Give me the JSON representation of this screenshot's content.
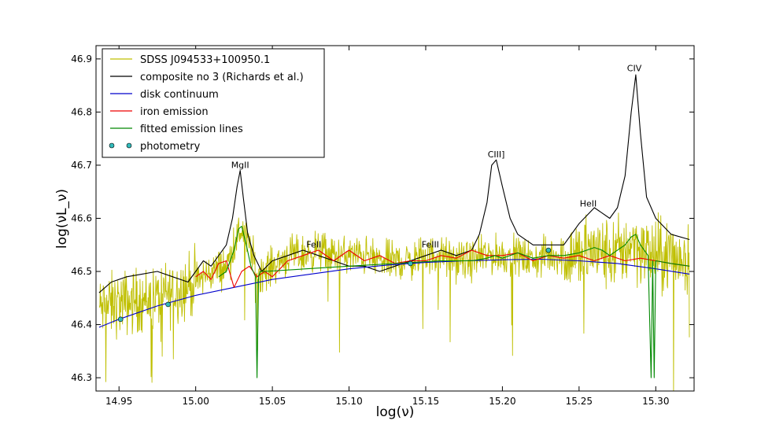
{
  "chart_data": {
    "type": "line",
    "xlabel": "log(ν)",
    "ylabel": "log(νL_ν)",
    "xlim": [
      14.935,
      15.325
    ],
    "ylim": [
      46.275,
      46.925
    ],
    "xticks": [
      "14.95",
      "15.00",
      "15.05",
      "15.10",
      "15.15",
      "15.20",
      "15.25",
      "15.30"
    ],
    "yticks": [
      "46.3",
      "46.4",
      "46.5",
      "46.6",
      "46.7",
      "46.8",
      "46.9"
    ],
    "legend_position": "top-left",
    "grid": false,
    "series": [
      {
        "name": "SDSS J094533+100950.1",
        "kind": "noisy-line",
        "color": "#bfbf00",
        "x": [
          14.937,
          14.95,
          14.975,
          15.0,
          15.01,
          15.02,
          15.025,
          15.03,
          15.035,
          15.04,
          15.045,
          15.05,
          15.06,
          15.07,
          15.08,
          15.09,
          15.1,
          15.11,
          15.12,
          15.13,
          15.14,
          15.15,
          15.16,
          15.17,
          15.18,
          15.19,
          15.2,
          15.21,
          15.22,
          15.23,
          15.24,
          15.25,
          15.26,
          15.27,
          15.28,
          15.285,
          15.29,
          15.3,
          15.31,
          15.322
        ],
        "y": [
          46.43,
          46.44,
          46.45,
          46.48,
          46.5,
          46.51,
          46.55,
          46.58,
          46.55,
          46.5,
          46.5,
          46.51,
          46.53,
          46.53,
          46.54,
          46.53,
          46.53,
          46.53,
          46.52,
          46.52,
          46.52,
          46.53,
          46.53,
          46.52,
          46.52,
          46.53,
          46.53,
          46.53,
          46.52,
          46.53,
          46.53,
          46.53,
          46.54,
          46.53,
          46.54,
          46.56,
          46.54,
          46.53,
          46.53,
          46.52
        ]
      },
      {
        "name": "composite no 3 (Richards et al.)",
        "kind": "line",
        "color": "#000000",
        "x": [
          14.937,
          14.945,
          14.955,
          14.965,
          14.975,
          14.985,
          14.995,
          15.0,
          15.005,
          15.01,
          15.015,
          15.02,
          15.024,
          15.027,
          15.029,
          15.031,
          15.034,
          15.038,
          15.043,
          15.05,
          15.06,
          15.07,
          15.08,
          15.09,
          15.1,
          15.11,
          15.12,
          15.13,
          15.14,
          15.15,
          15.16,
          15.17,
          15.18,
          15.185,
          15.19,
          15.193,
          15.196,
          15.2,
          15.205,
          15.21,
          15.22,
          15.23,
          15.24,
          15.25,
          15.26,
          15.27,
          15.275,
          15.28,
          15.284,
          15.287,
          15.29,
          15.294,
          15.3,
          15.31,
          15.322
        ],
        "y": [
          46.46,
          46.48,
          46.49,
          46.495,
          46.5,
          46.49,
          46.48,
          46.5,
          46.52,
          46.51,
          46.53,
          46.55,
          46.6,
          46.66,
          46.69,
          46.64,
          46.57,
          46.53,
          46.5,
          46.52,
          46.53,
          46.54,
          46.53,
          46.52,
          46.51,
          46.51,
          46.5,
          46.51,
          46.52,
          46.53,
          46.54,
          46.53,
          46.54,
          46.57,
          46.63,
          46.7,
          46.71,
          46.66,
          46.6,
          46.57,
          46.55,
          46.55,
          46.55,
          46.59,
          46.62,
          46.6,
          46.62,
          46.68,
          46.8,
          46.87,
          46.76,
          46.64,
          46.6,
          46.57,
          46.56
        ]
      },
      {
        "name": "disk continuum",
        "kind": "line",
        "color": "#0000cc",
        "x": [
          14.937,
          14.95,
          14.975,
          15.0,
          15.025,
          15.05,
          15.075,
          15.1,
          15.125,
          15.15,
          15.175,
          15.2,
          15.225,
          15.25,
          15.275,
          15.3,
          15.322
        ],
        "y": [
          46.395,
          46.41,
          46.435,
          46.455,
          46.47,
          46.485,
          46.495,
          46.505,
          46.512,
          46.517,
          46.52,
          46.522,
          46.523,
          46.52,
          46.515,
          46.505,
          46.495
        ]
      },
      {
        "name": "iron emission",
        "kind": "line",
        "color": "#ee0000",
        "x": [
          15.0,
          15.005,
          15.01,
          15.015,
          15.02,
          15.025,
          15.03,
          15.035,
          15.04,
          15.045,
          15.05,
          15.06,
          15.07,
          15.08,
          15.09,
          15.1,
          15.11,
          15.12,
          15.13,
          15.14,
          15.15,
          15.16,
          15.17,
          15.18,
          15.19,
          15.2,
          15.21,
          15.22,
          15.23,
          15.24,
          15.25,
          15.26,
          15.27,
          15.28,
          15.29,
          15.3,
          15.31,
          15.322
        ],
        "y": [
          46.49,
          46.5,
          46.485,
          46.515,
          46.52,
          46.47,
          46.5,
          46.51,
          46.49,
          46.5,
          46.49,
          46.52,
          46.53,
          46.54,
          46.52,
          46.54,
          46.52,
          46.53,
          46.515,
          46.52,
          46.52,
          46.53,
          46.525,
          46.54,
          46.53,
          46.53,
          46.535,
          46.52,
          46.53,
          46.525,
          46.53,
          46.52,
          46.53,
          46.52,
          46.525,
          46.52,
          46.515,
          46.51
        ]
      },
      {
        "name": "fitted emission lines",
        "kind": "line",
        "color": "#008800",
        "x": [
          15.015,
          15.02,
          15.025,
          15.028,
          15.03,
          15.033,
          15.036,
          15.039,
          15.04,
          15.041,
          15.042,
          15.045,
          15.1,
          15.16,
          15.18,
          15.19,
          15.195,
          15.2,
          15.21,
          15.22,
          15.23,
          15.24,
          15.25,
          15.255,
          15.26,
          15.265,
          15.27,
          15.28,
          15.284,
          15.287,
          15.29,
          15.295,
          15.297,
          15.298,
          15.299,
          15.3,
          15.31,
          15.322
        ],
        "y": [
          46.49,
          46.5,
          46.54,
          46.58,
          46.585,
          46.55,
          46.51,
          46.49,
          46.3,
          46.49,
          46.5,
          46.5,
          46.51,
          46.52,
          46.52,
          46.525,
          46.53,
          46.525,
          46.535,
          46.525,
          46.53,
          46.53,
          46.535,
          46.54,
          46.545,
          46.54,
          46.53,
          46.55,
          46.565,
          46.57,
          46.55,
          46.53,
          46.3,
          46.52,
          46.3,
          46.52,
          46.515,
          46.51
        ]
      }
    ],
    "photometry": {
      "name": "photometry",
      "color": "#33bbbb",
      "x": [
        14.951,
        14.982,
        15.14,
        15.23
      ],
      "y": [
        46.41,
        46.438,
        46.515,
        46.54
      ]
    },
    "annotations": [
      {
        "text": "MgII",
        "x": 15.029,
        "y": 46.695
      },
      {
        "text": "FeII",
        "x": 15.077,
        "y": 46.545
      },
      {
        "text": "FeIII",
        "x": 15.153,
        "y": 46.545
      },
      {
        "text": "CIII]",
        "x": 15.196,
        "y": 46.715
      },
      {
        "text": "HeII",
        "x": 15.256,
        "y": 46.622
      },
      {
        "text": "CIV",
        "x": 15.286,
        "y": 46.877
      }
    ]
  }
}
